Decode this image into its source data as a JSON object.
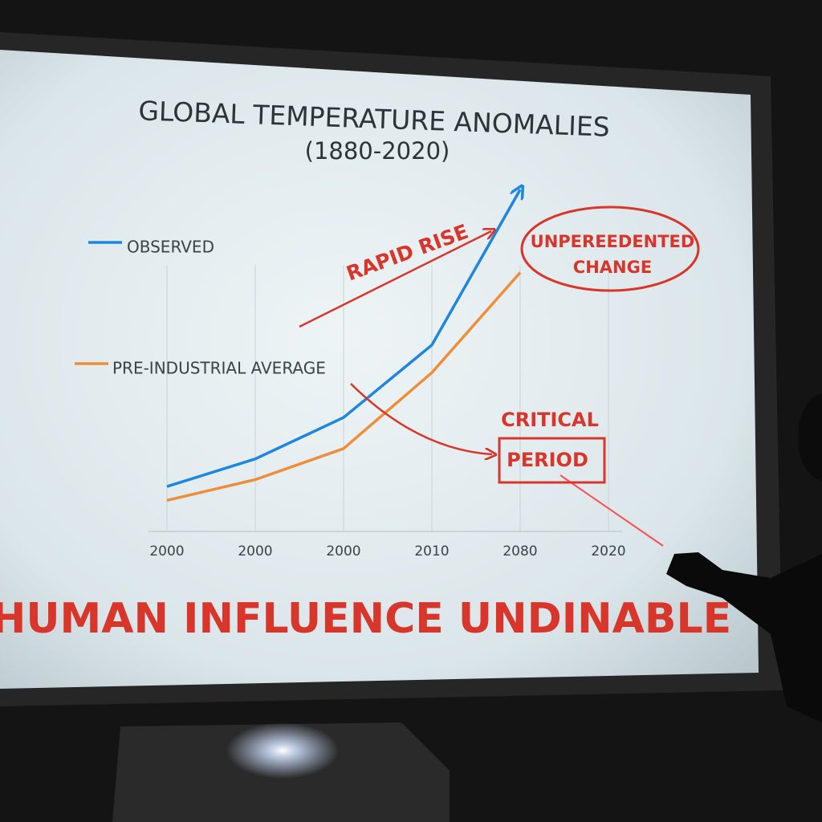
{
  "chart_data": {
    "type": "line",
    "title": "GLOBAL TEMPERATURE ANOMALIES",
    "subtitle": "(1880-2020)",
    "categories": [
      "2000",
      "2000",
      "2000",
      "2010",
      "2080",
      "2020"
    ],
    "series": [
      {
        "name": "OBSERVED",
        "color": "#1f86e0",
        "values": [
          13,
          21,
          33,
          54,
          99,
          null
        ]
      },
      {
        "name": "PRE-INDUSTRIAL AVERAGE",
        "color": "#ee8d3a",
        "values": [
          9,
          15,
          24,
          46,
          75,
          null
        ]
      }
    ],
    "ylim": [
      0,
      100
    ],
    "grid": true,
    "legend": "left",
    "annotations": [
      "RAPID RISE",
      "UNPEREEDENTED",
      "CHANGE",
      "CRITICAL",
      "PERIOD"
    ],
    "annotation_color": "#d8352b",
    "caption": "HUMAN INFLUENCE UNDINABLE"
  }
}
